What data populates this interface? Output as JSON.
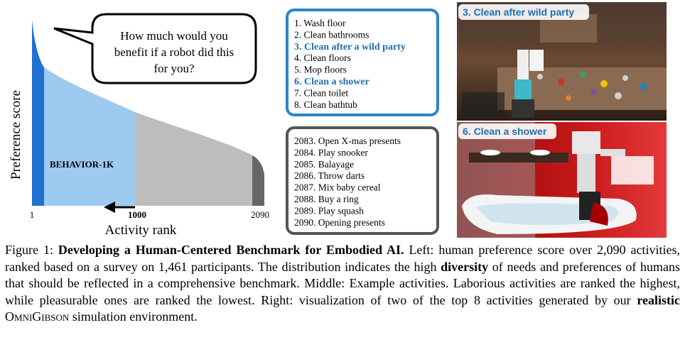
{
  "figure": {
    "left": {
      "speech": [
        "How much would you",
        "benefit if a robot did this",
        "for you?"
      ],
      "y_label": "Preference score",
      "x_label": "Activity rank",
      "x_ticks": [
        "1",
        "1000",
        "2090"
      ],
      "region_label": "BEHAVIOR-1K"
    },
    "top_list": [
      {
        "text": "1. Wash floor",
        "highlight": false
      },
      {
        "text": "2. Clean bathrooms",
        "highlight": false
      },
      {
        "text": "3. Clean after a wild party",
        "highlight": true
      },
      {
        "text": "4. Clean floors",
        "highlight": false
      },
      {
        "text": "5. Mop floors",
        "highlight": false
      },
      {
        "text": "6. Clean a shower",
        "highlight": true
      },
      {
        "text": "7. Clean toilet",
        "highlight": false
      },
      {
        "text": "8. Clean bathtub",
        "highlight": false
      }
    ],
    "bottom_list": [
      {
        "text": "2083. Open X-mas presents",
        "highlight": false
      },
      {
        "text": "2084. Play snooker",
        "highlight": false
      },
      {
        "text": "2085. Balayage",
        "highlight": false
      },
      {
        "text": "2086. Throw darts",
        "highlight": false
      },
      {
        "text": "2087. Mix baby cereal",
        "highlight": false
      },
      {
        "text": "2088. Buy a ring",
        "highlight": false
      },
      {
        "text": "2089. Play squash",
        "highlight": false
      },
      {
        "text": "2090. Opening presents",
        "highlight": false
      }
    ],
    "images": [
      {
        "label": "3. Clean after wild party"
      },
      {
        "label": "6. Clean a shower"
      }
    ]
  },
  "caption": {
    "segments": [
      {
        "text": "Figure 1: ",
        "style": "normal"
      },
      {
        "text": "Developing a Human-Centered Benchmark for Embodied AI.",
        "style": "bold"
      },
      {
        "text": " Left: human preference score over 2,090 activities, ranked based on a survey on 1,461 participants. The distribution indicates the high ",
        "style": "normal"
      },
      {
        "text": "diversity",
        "style": "bold"
      },
      {
        "text": " of needs and preferences of humans that should be reflected in a comprehensive benchmark. Middle: Example activities. Laborious activities are ranked the highest, while pleasurable ones are ranked the lowest. Right: visualization of two of the top 8 activities generated by our ",
        "style": "normal"
      },
      {
        "text": "realistic",
        "style": "bold"
      },
      {
        "text": " ",
        "style": "normal"
      },
      {
        "text": "OmniGibson",
        "style": "smallcaps"
      },
      {
        "text": " simulation environment.",
        "style": "normal"
      }
    ]
  }
}
